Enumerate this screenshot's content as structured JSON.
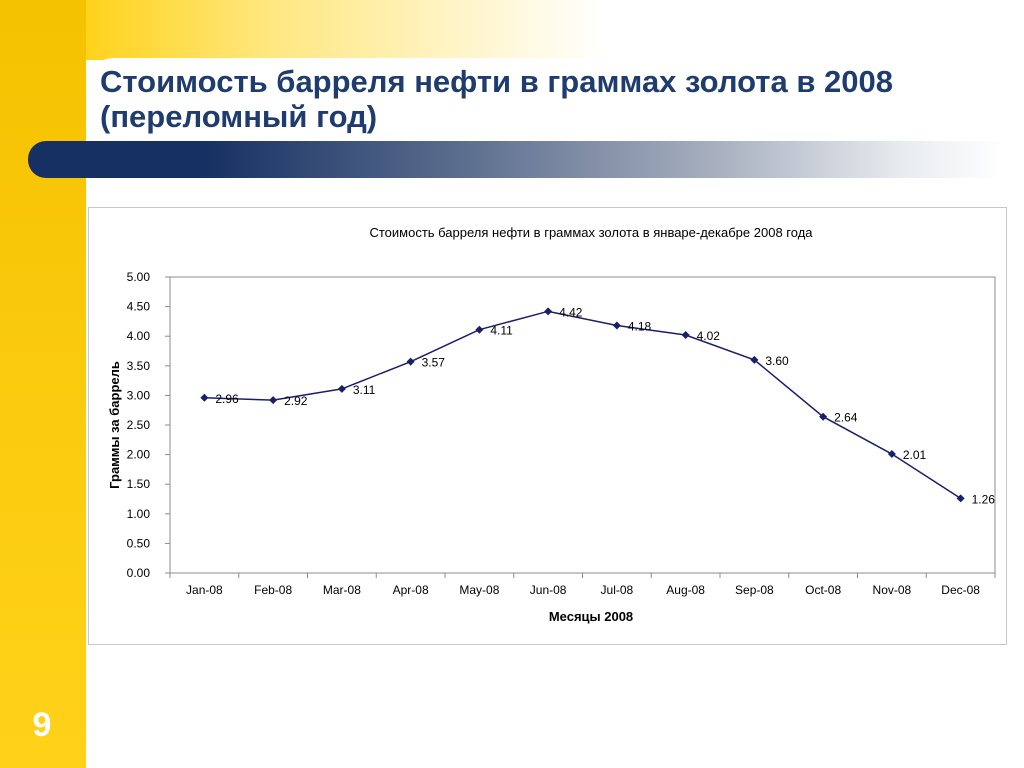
{
  "slide": {
    "title": "Стоимость барреля нефти в граммах золота в 2008 (переломный год)",
    "page_number": "9",
    "colors": {
      "accent_yellow": "#f5c200",
      "title_navy": "#1f3c6e",
      "series_navy": "#1a1f6b"
    }
  },
  "chart_data": {
    "type": "line",
    "title": "Стоимость барреля нефти в граммах золота в январе-декабре 2008 года",
    "xlabel": "Месяцы 2008",
    "ylabel": "Граммы за баррель",
    "categories": [
      "Jan-08",
      "Feb-08",
      "Mar-08",
      "Apr-08",
      "May-08",
      "Jun-08",
      "Jul-08",
      "Aug-08",
      "Sep-08",
      "Oct-08",
      "Nov-08",
      "Dec-08"
    ],
    "series": [
      {
        "name": "Граммы за баррель",
        "values": [
          2.96,
          2.92,
          3.11,
          3.57,
          4.11,
          4.42,
          4.18,
          4.02,
          3.6,
          2.64,
          2.01,
          1.26
        ],
        "labels": [
          "2.96",
          "2.92",
          "3.11",
          "3.57",
          "4.11",
          "4.42",
          "4.18",
          "4.02",
          "3.60",
          "2.64",
          "2.01",
          "1.26"
        ]
      }
    ],
    "ylim": [
      0,
      5
    ],
    "ytick_labels": [
      "0.00",
      "0.50",
      "1.00",
      "1.50",
      "2.00",
      "2.50",
      "3.00",
      "3.50",
      "4.00",
      "4.50",
      "5.00"
    ],
    "grid": false,
    "legend": "none"
  }
}
